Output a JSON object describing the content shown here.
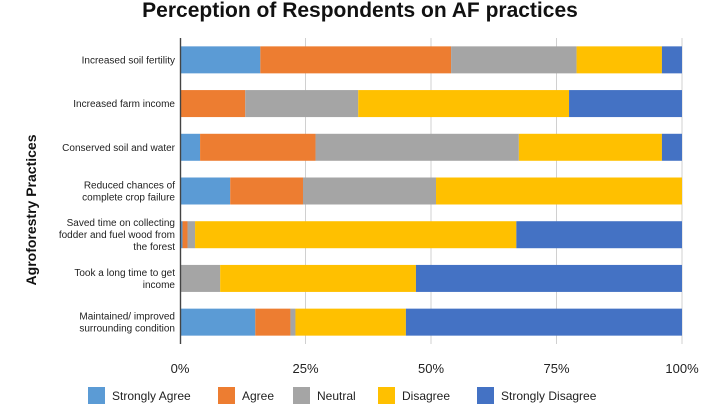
{
  "chart_data": {
    "type": "bar",
    "orientation": "horizontal",
    "stacked": true,
    "title": "Perception of Respondents on AF practices",
    "ylabel": "Agroforestry Practices",
    "xlabel": "",
    "xlim": [
      0,
      100
    ],
    "x_ticks": [
      "0%",
      "25%",
      "50%",
      "75%",
      "100%"
    ],
    "grid": true,
    "legend_position": "bottom",
    "categories": [
      "Increased soil fertility",
      "Increased farm income",
      "Conserved soil and water",
      "Reduced chances of complete crop failure",
      "Saved time on collecting fodder and fuel wood from the forest",
      "Took a long time to get income",
      "Maintained/ improved surrounding condition"
    ],
    "category_lines": [
      [
        "Increased soil fertility"
      ],
      [
        "Increased farm income"
      ],
      [
        "Conserved soil and water"
      ],
      [
        "Reduced chances of",
        "complete crop failure"
      ],
      [
        "Saved time on collecting",
        "fodder and fuel wood from",
        "the forest"
      ],
      [
        "Took a long time to get",
        "income"
      ],
      [
        "Maintained/ improved",
        "surrounding condition"
      ]
    ],
    "series": [
      {
        "name": "Strongly Agree",
        "color": "#5B9BD5",
        "values": [
          16,
          0,
          4,
          10,
          0.5,
          0,
          15
        ]
      },
      {
        "name": "Agree",
        "color": "#ED7D31",
        "values": [
          38,
          13,
          23,
          14.5,
          1,
          0,
          7
        ]
      },
      {
        "name": "Neutral",
        "color": "#A5A5A5",
        "values": [
          25,
          22.5,
          40.5,
          26.5,
          1.5,
          8,
          1
        ]
      },
      {
        "name": "Disagree",
        "color": "#FFC000",
        "values": [
          17,
          42,
          28.5,
          49,
          64,
          39,
          22
        ]
      },
      {
        "name": "Strongly Disagree",
        "color": "#4472C4",
        "values": [
          4,
          22.5,
          4,
          0,
          33,
          53,
          55
        ]
      }
    ]
  }
}
